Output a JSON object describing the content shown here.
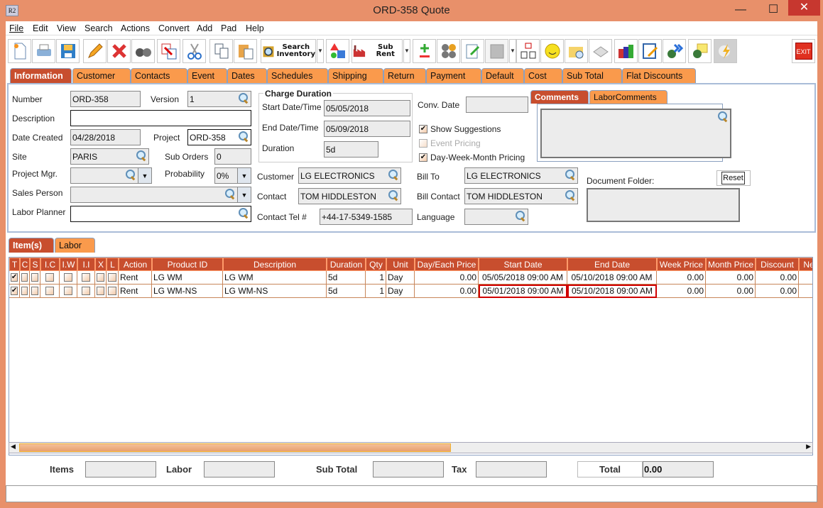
{
  "window": {
    "title": "ORD-358 Quote",
    "app_icon": "R2",
    "minimize": "—",
    "maximize": "☐",
    "close": "✕"
  },
  "menu": [
    "File",
    "Edit",
    "View",
    "Search",
    "Actions",
    "Convert",
    "Add",
    "Pad",
    "Help"
  ],
  "toolbar": {
    "search_inventory": "Search\nInventory",
    "sub_rent": "Sub Rent",
    "exit": "EXIT",
    "icons": [
      "new-document-icon",
      "print-icon",
      "save-icon",
      "edit-pencil-icon",
      "delete-x-icon",
      "binoculars-icon",
      "convert-document-icon",
      "cut-scissors-icon",
      "copy-icon",
      "paste-icon",
      "search-inventory-icon",
      "shapes-icon",
      "sub-rent-factory-icon",
      "add-remove-icon",
      "balls-question-icon",
      "notepad-icon",
      "calendar-icon",
      "hierarchy-icon",
      "smiley-icon",
      "folder-clock-icon",
      "keyboard-key-icon",
      "stacked-barrels-icon",
      "edit-form-icon",
      "money-forward-icon",
      "money-note-icon",
      "lightning-icon",
      "exit-icon"
    ]
  },
  "tabs": [
    "Information",
    "Customer",
    "Contacts",
    "Event",
    "Dates",
    "Schedules",
    "Shipping",
    "Return",
    "Payment",
    "Default",
    "Cost",
    "Sub Total",
    "Flat Discounts"
  ],
  "info": {
    "number_label": "Number",
    "number": "ORD-358",
    "version_label": "Version",
    "version": "1",
    "description_label": "Description",
    "description": "",
    "date_created_label": "Date Created",
    "date_created": "04/28/2018",
    "project_label": "Project",
    "project": "ORD-358",
    "site_label": "Site",
    "site": "PARIS",
    "sub_orders_label": "Sub Orders",
    "sub_orders": "0",
    "project_mgr_label": "Project Mgr.",
    "project_mgr": "",
    "probability_label": "Probability",
    "probability": "0%",
    "sales_person_label": "Sales Person",
    "sales_person": "",
    "labor_planner_label": "Labor Planner",
    "labor_planner": "",
    "charge_duration": {
      "title": "Charge Duration",
      "start_label": "Start Date/Time",
      "start": "05/05/2018",
      "end_label": "End Date/Time",
      "end": "05/09/2018",
      "duration_label": "Duration",
      "duration": "5d"
    },
    "customer_label": "Customer",
    "customer": "LG ELECTRONICS",
    "contact_label": "Contact",
    "contact": "TOM HIDDLESTON",
    "contact_tel_label": "Contact Tel #",
    "contact_tel": "+44-17-5349-1585",
    "conv_date_label": "Conv. Date",
    "conv_date": "",
    "show_suggestions": "Show Suggestions",
    "event_pricing": "Event Pricing",
    "dwm_pricing": "Day-Week-Month Pricing",
    "bill_to_label": "Bill To",
    "bill_to": "LG ELECTRONICS",
    "bill_contact_label": "Bill Contact",
    "bill_contact": "TOM HIDDLESTON",
    "language_label": "Language",
    "language": "",
    "comment_tabs": [
      "Comments",
      "LaborComments"
    ],
    "document_folder_label": "Document Folder:",
    "reset": "Reset"
  },
  "item_tabs": [
    "Item(s)",
    "Labor"
  ],
  "grid": {
    "columns": [
      "T",
      "C",
      "S",
      "I.C",
      "I.W",
      "I.I",
      "X",
      "L",
      "Action",
      "Product ID",
      "Description",
      "Duration",
      "Qty",
      "Unit",
      "Day/Each Price",
      "Start Date",
      "End Date",
      "Week Price",
      "Month Price",
      "Discount",
      "Ne"
    ],
    "rows": [
      {
        "t": true,
        "action": "Rent",
        "product_id": "LG WM",
        "description": "LG WM",
        "duration": "5d",
        "qty": "1",
        "unit": "Day",
        "day_price": "0.00",
        "start": "05/05/2018 09:00 AM",
        "end": "05/10/2018 09:00 AM",
        "week": "0.00",
        "month": "0.00",
        "discount": "0.00",
        "highlight": false
      },
      {
        "t": true,
        "action": "Rent",
        "product_id": "LG WM-NS",
        "description": "LG WM-NS",
        "duration": "5d",
        "qty": "1",
        "unit": "Day",
        "day_price": "0.00",
        "start": "05/01/2018 09:00 AM",
        "end": "05/10/2018 09:00 AM",
        "week": "0.00",
        "month": "0.00",
        "discount": "0.00",
        "highlight": true
      }
    ]
  },
  "footer": {
    "items_label": "Items",
    "items": "",
    "labor_label": "Labor",
    "labor": "",
    "sub_total_label": "Sub Total",
    "sub_total": "",
    "tax_label": "Tax",
    "tax": "",
    "total_label": "Total",
    "total": "0.00"
  },
  "status": ""
}
